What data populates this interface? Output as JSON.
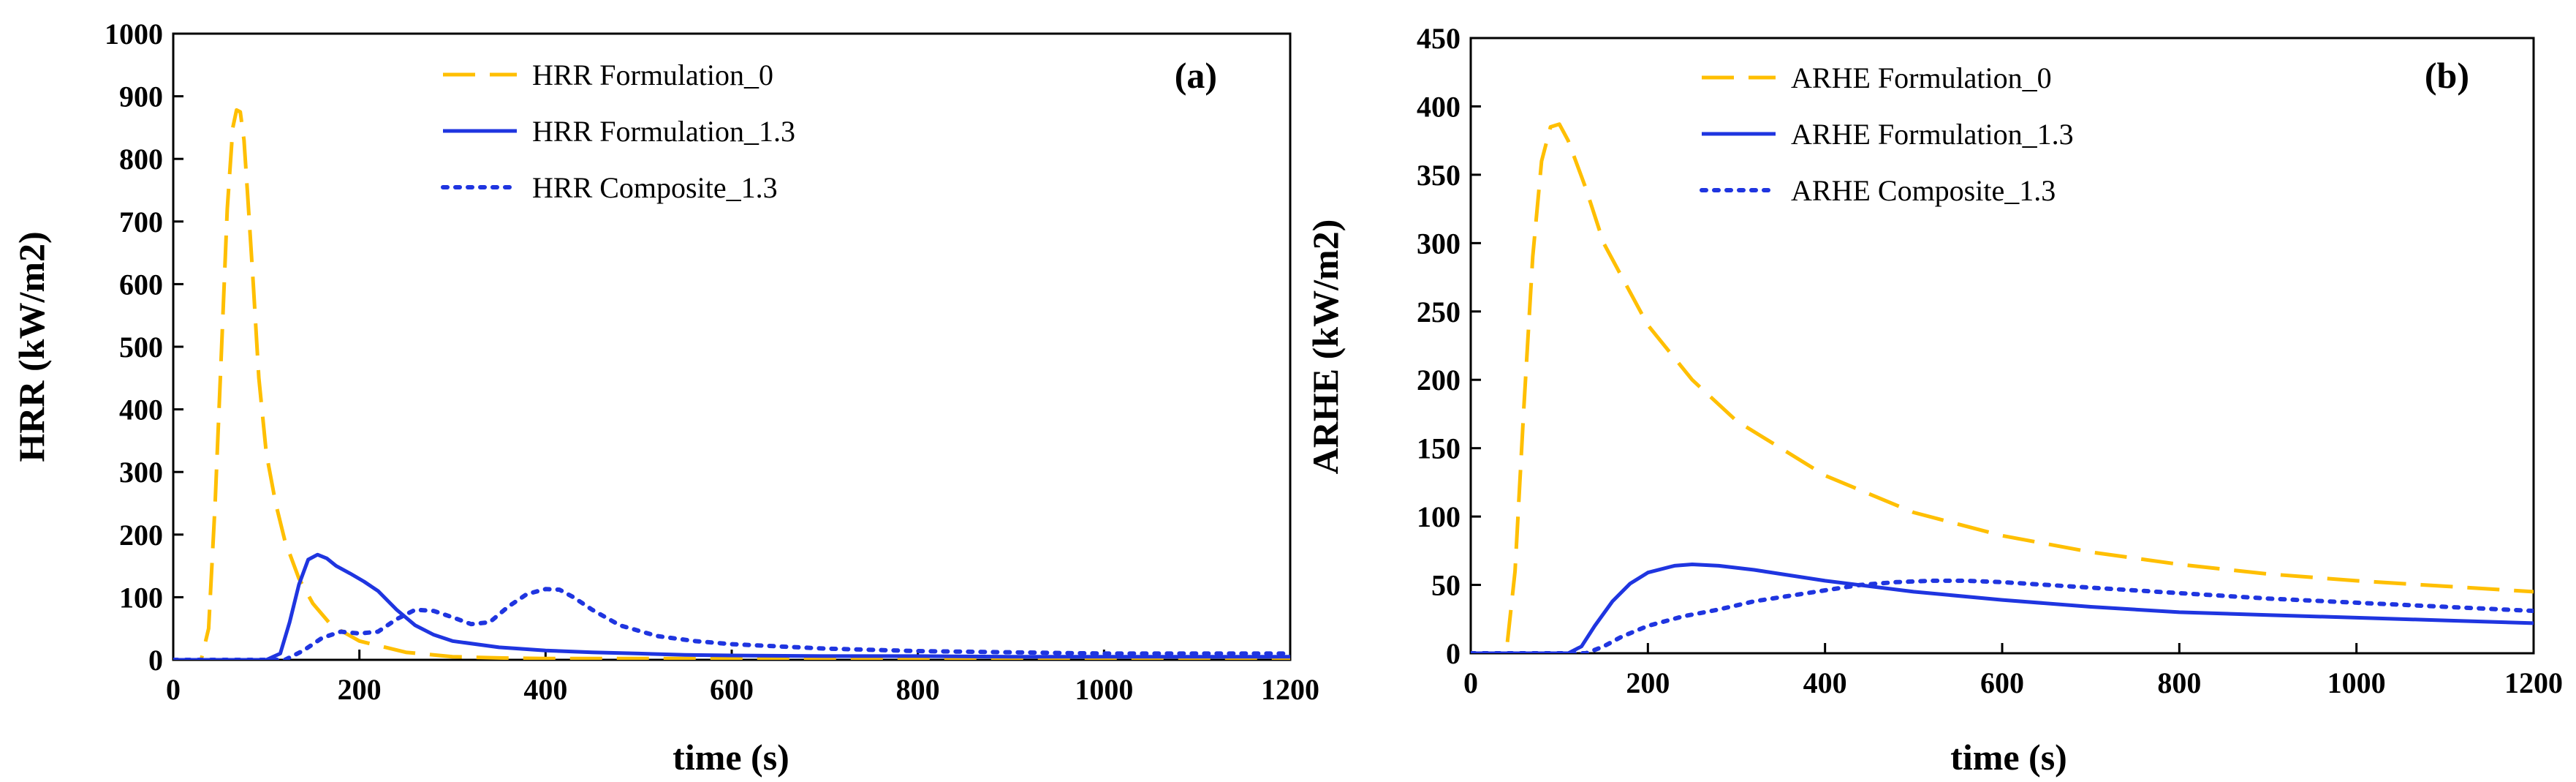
{
  "colors": {
    "yellow": "#ffbf00",
    "blue": "#1f35e0",
    "axis": "#000000"
  },
  "chart_data": [
    {
      "type": "line",
      "panel_label": "(a)",
      "xlabel": "time (s)",
      "ylabel": "HRR (kW/m2)",
      "xlim": [
        0,
        1200
      ],
      "ylim": [
        0,
        1000
      ],
      "xticks": [
        0,
        200,
        400,
        600,
        800,
        1000,
        1200
      ],
      "yticks": [
        0,
        100,
        200,
        300,
        400,
        500,
        600,
        700,
        800,
        900,
        1000
      ],
      "legend": "top-center",
      "series": [
        {
          "name": "HRR Formulation_0",
          "style": "dashed",
          "color": "yellow",
          "x": [
            0,
            30,
            38,
            45,
            52,
            58,
            64,
            68,
            72,
            76,
            80,
            86,
            92,
            100,
            110,
            120,
            135,
            150,
            170,
            200,
            250,
            300,
            350,
            400,
            450,
            500,
            600,
            700,
            800,
            900,
            1000,
            1100,
            1200
          ],
          "y": [
            0,
            0,
            50,
            250,
            500,
            720,
            850,
            878,
            875,
            830,
            740,
            600,
            450,
            330,
            250,
            190,
            130,
            90,
            55,
            30,
            12,
            5,
            3,
            2,
            2,
            2,
            2,
            2,
            2,
            2,
            2,
            2,
            2
          ]
        },
        {
          "name": "HRR Formulation_1.3",
          "style": "solid",
          "color": "blue",
          "x": [
            0,
            100,
            115,
            125,
            135,
            145,
            155,
            165,
            175,
            190,
            205,
            220,
            240,
            260,
            280,
            300,
            350,
            400,
            450,
            500,
            550,
            600,
            700,
            800,
            900,
            1000,
            1100,
            1200
          ],
          "y": [
            0,
            0,
            10,
            60,
            120,
            160,
            168,
            162,
            150,
            138,
            125,
            110,
            80,
            55,
            40,
            30,
            20,
            15,
            12,
            10,
            8,
            7,
            6,
            6,
            5,
            5,
            5,
            5
          ]
        },
        {
          "name": "HRR Composite_1.3",
          "style": "dotted",
          "color": "blue",
          "x": [
            0,
            120,
            140,
            160,
            180,
            200,
            220,
            240,
            260,
            280,
            300,
            320,
            340,
            360,
            380,
            400,
            415,
            430,
            450,
            480,
            520,
            560,
            600,
            700,
            800,
            900,
            1000,
            1100,
            1200
          ],
          "y": [
            0,
            0,
            15,
            35,
            45,
            42,
            45,
            65,
            80,
            78,
            68,
            57,
            60,
            85,
            105,
            113,
            112,
            100,
            80,
            55,
            38,
            30,
            25,
            18,
            14,
            12,
            10,
            10,
            10
          ]
        }
      ]
    },
    {
      "type": "line",
      "panel_label": "(b)",
      "xlabel": "time (s)",
      "ylabel": "ARHE (kW/m2)",
      "xlim": [
        0,
        1200
      ],
      "ylim": [
        0,
        450
      ],
      "xticks": [
        0,
        200,
        400,
        600,
        800,
        1000,
        1200
      ],
      "yticks": [
        0,
        50,
        100,
        150,
        200,
        250,
        300,
        350,
        400,
        450
      ],
      "legend": "top-center",
      "series": [
        {
          "name": "ARHE Formulation_0",
          "style": "dashed",
          "color": "yellow",
          "x": [
            0,
            40,
            50,
            60,
            70,
            80,
            90,
            100,
            110,
            130,
            150,
            200,
            250,
            300,
            400,
            500,
            600,
            700,
            800,
            900,
            1000,
            1100,
            1200
          ],
          "y": [
            0,
            0,
            60,
            180,
            290,
            360,
            385,
            387,
            375,
            340,
            300,
            240,
            200,
            170,
            130,
            103,
            86,
            74,
            65,
            58,
            53,
            49,
            45
          ]
        },
        {
          "name": "ARHE Formulation_1.3",
          "style": "solid",
          "color": "blue",
          "x": [
            0,
            110,
            125,
            140,
            160,
            180,
            200,
            230,
            250,
            280,
            320,
            400,
            500,
            600,
            700,
            800,
            900,
            1000,
            1100,
            1200
          ],
          "y": [
            0,
            0,
            5,
            20,
            38,
            51,
            59,
            64,
            65,
            64,
            61,
            53,
            45,
            39,
            34,
            30,
            28,
            26,
            24,
            22
          ]
        },
        {
          "name": "ARHE Composite_1.3",
          "style": "dotted",
          "color": "blue",
          "x": [
            0,
            130,
            150,
            170,
            200,
            240,
            280,
            320,
            360,
            400,
            440,
            480,
            520,
            560,
            600,
            700,
            800,
            900,
            1000,
            1100,
            1200
          ],
          "y": [
            0,
            0,
            5,
            12,
            20,
            27,
            32,
            38,
            42,
            46,
            50,
            52,
            53,
            53,
            52,
            48,
            44,
            40,
            37,
            34,
            31
          ]
        }
      ]
    }
  ]
}
